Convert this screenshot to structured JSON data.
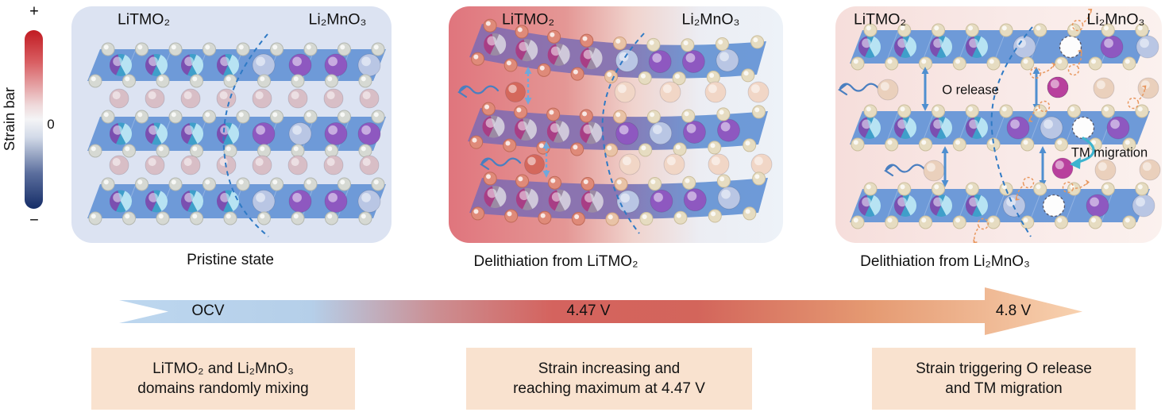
{
  "strain_bar": {
    "label": "Strain bar",
    "plus": "+",
    "zero": "0",
    "minus": "−"
  },
  "panels": [
    {
      "formula_left": "LiTMO₂",
      "formula_right": "Li₂MnO₃",
      "caption": "Pristine state"
    },
    {
      "formula_left": "LiTMO₂",
      "formula_right": "Li₂MnO₃",
      "caption": "Delithiation from LiTMO₂"
    },
    {
      "formula_left": "LiTMO₂",
      "formula_right": "Li₂MnO₃",
      "caption": "Delithiation from Li₂MnO₃",
      "o_release": "O release",
      "tm_migration": "TM migration"
    }
  ],
  "voltage_arrow": {
    "start_label": "OCV",
    "mid_label": "4.47 V",
    "end_label": "4.8 V"
  },
  "summary_boxes": [
    {
      "line1": "LiTMO₂ and Li₂MnO₃",
      "line2": "domains randomly mixing"
    },
    {
      "line1": "Strain increasing and",
      "line2": "reaching maximum at 4.47 V"
    },
    {
      "line1": "Strain triggering O release",
      "line2": "and TM migration"
    }
  ],
  "colors": {
    "strain_top": "#c11b22",
    "strain_mid": "#f4f4f6",
    "strain_bottom": "#152d67",
    "panel1_bg": "#dce3f2",
    "panel2_bg_left": "#e0757d",
    "panel2_bg_right": "#edf2f8",
    "panel3_bg_left": "#f6dedb",
    "panel3_bg_right": "#fbf1ee",
    "slab_blue": "#6e9ad8",
    "slab_purple": "#8d6cab",
    "o_gray": "#d6d9d3",
    "o_gray_rim": "#b4b8b1",
    "o_cream": "#e6dcc1",
    "o_cream_rim": "#cbbf9e",
    "o_red": "#df8a79",
    "o_red_rim": "#c06a58",
    "li_pink": "#d8bec6",
    "li_beige": "#ead0bc",
    "li_red": "#d4685c",
    "li_pale": "#f1d6c6",
    "li_slab": "#b9c6e4",
    "mn_purple": "#8e58c0",
    "tm_magenta": "#b8409d",
    "pie_base": "#3f9fca",
    "pie_purple": "#7b4fb0",
    "pie_pale": "#b7e3f3",
    "pie_dark_base": "#9b8aa4",
    "pie_dark_purple": "#a83e85",
    "pie_dark_pale": "#cfc8da",
    "boundary_blue": "#2f7ac5",
    "wavy_blue": "#4a7fc0",
    "dash_arrow_blue": "#6fa8dc",
    "solid_arrow_blue": "#4f8fd0",
    "teal": "#3db4cf",
    "ghost_orange": "#e8975e",
    "box_bg": "#f9e2cf",
    "varrow_blue": "#bdd7ef",
    "varrow_red": "#d4635e",
    "varrow_orange": "#f8d2b0"
  }
}
